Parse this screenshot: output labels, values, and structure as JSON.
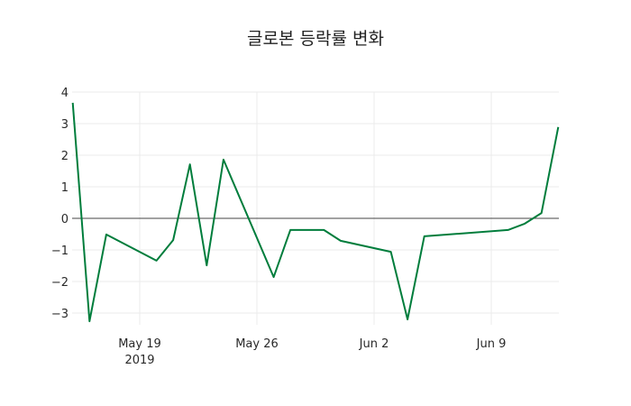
{
  "chart_data": {
    "type": "line",
    "title": "글로본 등락률 변화",
    "xlabel": "",
    "ylabel": "",
    "ylim": [
      -3.4,
      4
    ],
    "yticks": [
      -3,
      -2,
      -1,
      0,
      1,
      2,
      3,
      4
    ],
    "xticks": [
      {
        "label": "May 19",
        "sublabel": "2019",
        "date": "2019-05-19"
      },
      {
        "label": "May 26",
        "sublabel": "",
        "date": "2019-05-26"
      },
      {
        "label": "Jun 2",
        "sublabel": "",
        "date": "2019-06-02"
      },
      {
        "label": "Jun 9",
        "sublabel": "",
        "date": "2019-06-09"
      }
    ],
    "grid": true,
    "legend": false,
    "line_color": "#007d3c",
    "zero_line": true,
    "x": [
      "2019-05-15",
      "2019-05-16",
      "2019-05-17",
      "2019-05-20",
      "2019-05-21",
      "2019-05-22",
      "2019-05-23",
      "2019-05-24",
      "2019-05-27",
      "2019-05-28",
      "2019-05-30",
      "2019-05-31",
      "2019-06-03",
      "2019-06-04",
      "2019-06-05",
      "2019-06-10",
      "2019-06-11",
      "2019-06-12",
      "2019-06-13"
    ],
    "series": [
      {
        "name": "등락률",
        "values": [
          3.66,
          -3.26,
          -0.51,
          -1.34,
          -0.69,
          1.71,
          -1.49,
          1.86,
          -1.86,
          -0.37,
          -0.37,
          -0.71,
          -1.06,
          -3.2,
          -0.57,
          -0.37,
          -0.17,
          0.17,
          2.89
        ]
      }
    ]
  }
}
